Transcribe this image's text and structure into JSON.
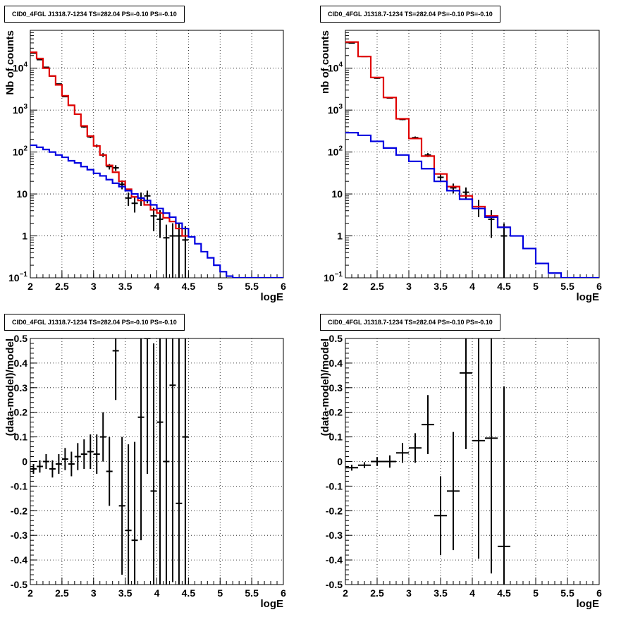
{
  "chart_data": [
    {
      "type": "histogram",
      "title": "CID0_4FGL J1318.7-1234 TS=282.04 PS=-0.10 PS=-0.10",
      "xlabel": "logE",
      "ylabel": "Nb of counts",
      "xlim": [
        2,
        6
      ],
      "ylim": [
        0.1,
        80000
      ],
      "yscale": "log",
      "grid": true,
      "xticks": [
        "2",
        "2.5",
        "3",
        "3.5",
        "4",
        "4.5",
        "5",
        "5.5",
        "6"
      ],
      "yticks": [
        {
          "v": 0.1,
          "base": "10",
          "exp": "−1"
        },
        {
          "v": 1,
          "label": "1"
        },
        {
          "v": 10,
          "label": "10"
        },
        {
          "v": 100,
          "base": "10",
          "exp": "2"
        },
        {
          "v": 1000,
          "base": "10",
          "exp": "3"
        },
        {
          "v": 10000,
          "base": "10",
          "exp": "4"
        }
      ],
      "series": [
        {
          "role": "data",
          "color": "#000000",
          "x": [
            2.05,
            2.15,
            2.25,
            2.35,
            2.45,
            2.55,
            2.65,
            2.75,
            2.85,
            2.95,
            3.05,
            3.15,
            3.25,
            3.35,
            3.45,
            3.55,
            3.65,
            3.75,
            3.85,
            3.95,
            4.05,
            4.15,
            4.25,
            4.35,
            4.45
          ],
          "y": [
            23000,
            16000,
            10500,
            6500,
            4200,
            2100,
            1300,
            800,
            400,
            230,
            140,
            85,
            45,
            42,
            17,
            8,
            6,
            8,
            9,
            3,
            2.5,
            0.9,
            1,
            1,
            0.8
          ],
          "yerr": [
            150,
            126,
            102,
            80,
            65,
            46,
            36,
            28,
            20,
            15,
            12,
            9,
            6.7,
            6.5,
            4.1,
            2.8,
            2.4,
            2.8,
            3,
            1.7,
            1.6,
            0.95,
            1,
            1,
            0.9
          ]
        },
        {
          "role": "model",
          "color": "#e00000",
          "x": [
            2,
            2.1,
            2.2,
            2.3,
            2.4,
            2.5,
            2.6,
            2.7,
            2.8,
            2.9,
            3.0,
            3.1,
            3.2,
            3.3,
            3.4,
            3.5,
            3.6,
            3.7,
            3.8,
            3.9,
            4.0,
            4.1,
            4.2,
            4.3,
            4.4,
            4.5
          ],
          "y": [
            24000,
            17000,
            10000,
            6500,
            4000,
            2200,
            1300,
            800,
            420,
            240,
            140,
            85,
            48,
            33,
            20,
            13,
            8.5,
            7,
            5.5,
            4.2,
            3.5,
            2.7,
            2.2,
            1.5,
            1.0
          ]
        },
        {
          "role": "background",
          "color": "#0000e0",
          "x": [
            2,
            2.1,
            2.2,
            2.3,
            2.4,
            2.5,
            2.6,
            2.7,
            2.8,
            2.9,
            3.0,
            3.1,
            3.2,
            3.3,
            3.4,
            3.5,
            3.6,
            3.7,
            3.8,
            3.9,
            4.0,
            4.1,
            4.2,
            4.3,
            4.4,
            4.5,
            4.6,
            4.7,
            4.8,
            4.9,
            5.0,
            5.1,
            5.2,
            6.0
          ],
          "y": [
            145,
            130,
            115,
            100,
            85,
            75,
            62,
            55,
            45,
            38,
            31,
            27,
            22,
            18,
            15,
            12,
            10,
            8,
            7,
            5.5,
            4.5,
            3.5,
            2.8,
            2,
            1.5,
            0.95,
            0.65,
            0.42,
            0.3,
            0.2,
            0.14,
            0.11,
            0.1
          ]
        }
      ]
    },
    {
      "type": "histogram",
      "title": "CID0_4FGL J1318.7-1234 TS=282.04 PS=-0.10 PS=-0.10",
      "xlabel": "logE",
      "ylabel": "nb of counts",
      "xlim": [
        2,
        6
      ],
      "ylim": [
        0.1,
        80000
      ],
      "yscale": "log",
      "grid": true,
      "xticks": [
        "2",
        "2.5",
        "3",
        "3.5",
        "4",
        "4.5",
        "5",
        "5.5",
        "6"
      ],
      "yticks": [
        {
          "v": 0.1,
          "base": "10",
          "exp": "−1"
        },
        {
          "v": 1,
          "label": "1"
        },
        {
          "v": 10,
          "label": "10"
        },
        {
          "v": 100,
          "base": "10",
          "exp": "2"
        },
        {
          "v": 1000,
          "base": "10",
          "exp": "3"
        },
        {
          "v": 10000,
          "base": "10",
          "exp": "4"
        }
      ],
      "series": [
        {
          "role": "data",
          "color": "#000000",
          "x": [
            2.1,
            2.3,
            2.5,
            2.7,
            2.9,
            3.1,
            3.3,
            3.5,
            3.7,
            3.9,
            4.1,
            4.3,
            4.5
          ],
          "y": [
            40000,
            19000,
            5800,
            1950,
            600,
            220,
            85,
            25,
            14,
            11,
            5,
            2.5,
            1
          ],
          "yerr": [
            200,
            138,
            76,
            44,
            24,
            15,
            9.2,
            5,
            3.7,
            3.3,
            2.2,
            1.6,
            1
          ]
        },
        {
          "role": "model",
          "color": "#e00000",
          "x": [
            2,
            2.2,
            2.4,
            2.6,
            2.8,
            3.0,
            3.2,
            3.4,
            3.6,
            3.8,
            4.0,
            4.2,
            4.4,
            4.6
          ],
          "y": [
            42000,
            19000,
            6000,
            2000,
            620,
            210,
            80,
            30,
            15,
            9,
            5,
            3,
            1.6
          ]
        },
        {
          "role": "background",
          "color": "#0000e0",
          "x": [
            2,
            2.2,
            2.4,
            2.6,
            2.8,
            3.0,
            3.2,
            3.4,
            3.6,
            3.8,
            4.0,
            4.2,
            4.4,
            4.6,
            4.8,
            5.0,
            5.2,
            5.4,
            6.0
          ],
          "y": [
            290,
            250,
            180,
            125,
            85,
            60,
            40,
            20,
            12,
            7.5,
            4.5,
            2.8,
            1.6,
            1.0,
            0.5,
            0.22,
            0.13,
            0.1
          ]
        }
      ]
    },
    {
      "type": "scatter",
      "title": "CID0_4FGL J1318.7-1234 TS=282.04 PS=-0.10 PS=-0.10",
      "xlabel": "logE",
      "ylabel": "(data-model)/model",
      "xlim": [
        2,
        6
      ],
      "ylim": [
        -0.5,
        0.5
      ],
      "yscale": "linear",
      "grid": true,
      "xticks": [
        "2",
        "2.5",
        "3",
        "3.5",
        "4",
        "4.5",
        "5",
        "5.5",
        "6"
      ],
      "yticks": [
        "-0.5",
        "-0.4",
        "-0.3",
        "-0.2",
        "-0.1",
        "0",
        "0.1",
        "0.2",
        "0.3",
        "0.4",
        "0.5"
      ],
      "series": [
        {
          "role": "residual",
          "color": "#000000",
          "xerr": 0.05,
          "x": [
            2.05,
            2.15,
            2.25,
            2.35,
            2.45,
            2.55,
            2.65,
            2.75,
            2.85,
            2.95,
            3.05,
            3.15,
            3.25,
            3.35,
            3.45,
            3.55,
            3.65,
            3.75,
            3.85,
            3.95,
            4.05,
            4.15,
            4.25,
            4.35,
            4.45
          ],
          "y": [
            -0.03,
            -0.02,
            0.0,
            -0.03,
            -0.01,
            0.01,
            -0.01,
            0.02,
            0.03,
            0.04,
            0.03,
            0.1,
            -0.04,
            0.45,
            -0.18,
            -0.28,
            -0.32,
            0.18,
            0.5,
            -0.12,
            0.16,
            0.0,
            0.31,
            -0.17,
            0.1
          ],
          "yerr": [
            0.02,
            0.025,
            0.03,
            0.035,
            0.04,
            0.045,
            0.05,
            0.055,
            0.06,
            0.07,
            0.08,
            0.1,
            0.14,
            0.2,
            0.28,
            0.35,
            0.4,
            0.5,
            0.55,
            0.6,
            0.7,
            0.75,
            0.8,
            0.85,
            0.9
          ]
        }
      ]
    },
    {
      "type": "scatter",
      "title": "CID0_4FGL J1318.7-1234 TS=282.04 PS=-0.10 PS=-0.10",
      "xlabel": "logE",
      "ylabel": "(data-model)/model",
      "xlim": [
        2,
        6
      ],
      "ylim": [
        -0.5,
        0.5
      ],
      "yscale": "linear",
      "grid": true,
      "xticks": [
        "2",
        "2.5",
        "3",
        "3.5",
        "4",
        "4.5",
        "5",
        "5.5",
        "6"
      ],
      "yticks": [
        "-0.5",
        "-0.4",
        "-0.3",
        "-0.2",
        "-0.1",
        "0",
        "0.1",
        "0.2",
        "0.3",
        "0.4",
        "0.5"
      ],
      "series": [
        {
          "role": "residual",
          "color": "#000000",
          "xerr": 0.1,
          "x": [
            2.1,
            2.3,
            2.5,
            2.7,
            2.9,
            3.1,
            3.3,
            3.5,
            3.7,
            3.9,
            4.1,
            4.3,
            4.5
          ],
          "y": [
            -0.025,
            -0.015,
            0.0,
            0.0,
            0.035,
            0.055,
            0.15,
            -0.22,
            -0.12,
            0.36,
            0.085,
            0.095,
            -0.345
          ],
          "yerr": [
            0.012,
            0.012,
            0.018,
            0.025,
            0.04,
            0.06,
            0.12,
            0.16,
            0.24,
            0.31,
            0.48,
            0.55,
            0.65
          ]
        }
      ]
    }
  ]
}
